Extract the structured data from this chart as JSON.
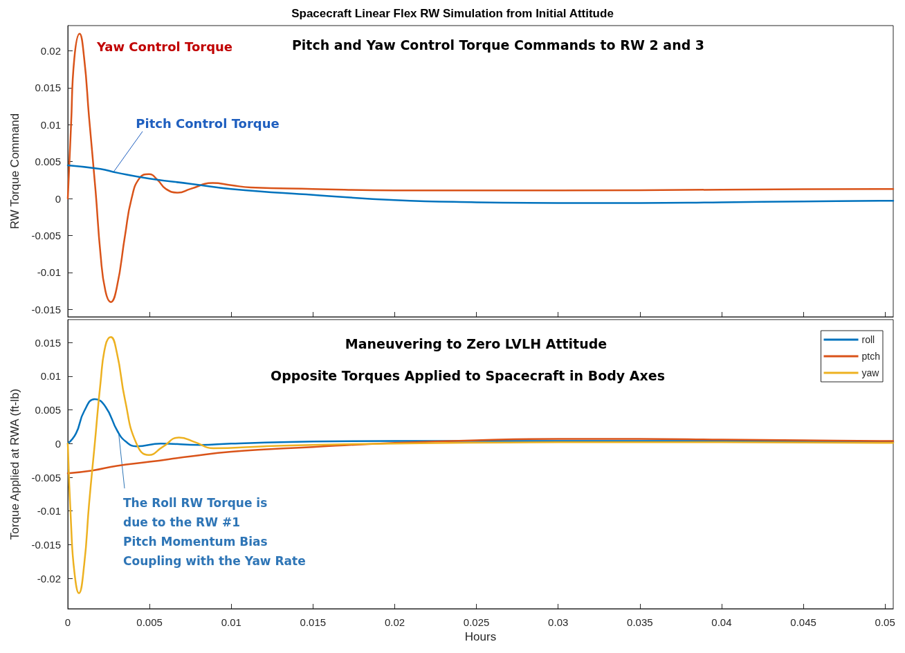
{
  "chart_data": [
    {
      "type": "line",
      "title": "Spacecraft Linear Flex RW Simulation from Initial Attitude",
      "ylabel": "RW Torque Command",
      "xlim": [
        0,
        0.0505
      ],
      "xticks": [
        0,
        0.005,
        0.01,
        0.015,
        0.02,
        0.025,
        0.03,
        0.035,
        0.04,
        0.045,
        0.05
      ],
      "ylim": [
        -0.016,
        0.0234
      ],
      "yticks": [
        -0.015,
        -0.01,
        -0.005,
        0,
        0.005,
        0.01,
        0.015,
        0.02
      ],
      "tick_labels": "y",
      "grid": false,
      "legend": false,
      "annotations": [
        "Pitch and Yaw Control Torque Commands to RW 2 and 3",
        "Yaw Control Torque",
        {
          "text": "Pitch Control Torque",
          "x": 0.0028,
          "y": 0.0036
        }
      ],
      "series": [
        {
          "color": "#d95319",
          "x": [
            0,
            0.0002,
            0.0004,
            0.00072,
            0.001,
            0.0013,
            0.0017,
            0.002,
            0.0023,
            0.00263,
            0.003,
            0.0035,
            0.0039,
            0.0044,
            0.00496,
            0.0055,
            0.006,
            0.00674,
            0.0075,
            0.00886,
            0.01,
            0.0112,
            0.015,
            0.02,
            0.03,
            0.04,
            0.05,
            0.0505
          ],
          "values": [
            0,
            0.01,
            0.019,
            0.0223,
            0.019,
            0.011,
            0.001,
            -0.0075,
            -0.0125,
            -0.014,
            -0.012,
            -0.005,
            0,
            0.0028,
            0.0033,
            0.0025,
            0.0013,
            0.0008,
            0.0013,
            0.0021,
            0.0018,
            0.0015,
            0.0013,
            0.0011,
            0.0011,
            0.0012,
            0.0013,
            0.0013
          ]
        },
        {
          "color": "#0072bd",
          "x": [
            0,
            0.002,
            0.003,
            0.005,
            0.0075,
            0.01,
            0.015,
            0.02,
            0.025,
            0.03,
            0.035,
            0.04,
            0.045,
            0.05,
            0.0505
          ],
          "values": [
            0.0045,
            0.004,
            0.0035,
            0.0027,
            0.002,
            0.0013,
            0.0005,
            -0.0002,
            -0.0005,
            -0.0006,
            -0.0006,
            -0.0005,
            -0.0004,
            -0.0003,
            -0.0003
          ]
        }
      ]
    },
    {
      "type": "line",
      "xlabel": "Hours",
      "ylabel": "Torque Applied at RWA (ft-lb)",
      "xlim": [
        0,
        0.0505
      ],
      "xticks": [
        0,
        0.005,
        0.01,
        0.015,
        0.02,
        0.025,
        0.03,
        0.035,
        0.04,
        0.045,
        0.05
      ],
      "ylim": [
        -0.0245,
        0.0184
      ],
      "yticks": [
        -0.02,
        -0.015,
        -0.01,
        -0.005,
        0,
        0.005,
        0.01,
        0.015
      ],
      "grid": false,
      "legend": "top right",
      "annotations": [
        "Maneuvering to Zero LVLH Attitude",
        "Opposite Torques Applied to Spacecraft in Body Axes",
        {
          "text": "The Roll RW Torque is\ndue to the RW #1\nPitch Momentum Bias\nCoupling with the Yaw Rate",
          "x": 0.0031,
          "y": 0.0018
        }
      ],
      "series": [
        {
          "name": "roll",
          "color": "#0072bd",
          "x": [
            0,
            0.0005,
            0.001,
            0.00165,
            0.0023,
            0.00305,
            0.0036,
            0.0042,
            0.0057,
            0.0081,
            0.01,
            0.015,
            0.02,
            0.03,
            0.04,
            0.05,
            0.0505
          ],
          "values": [
            0,
            0.0015,
            0.0048,
            0.0066,
            0.0055,
            0.0018,
            0.0002,
            -0.0004,
            0,
            -0.0002,
            0,
            0.0003,
            0.0004,
            0.0004,
            0.0004,
            0.0002,
            0.0002
          ]
        },
        {
          "name": "ptch",
          "color": "#d95319",
          "x": [
            0,
            0.0015,
            0.003,
            0.005,
            0.0075,
            0.01,
            0.015,
            0.02,
            0.025,
            0.03,
            0.035,
            0.04,
            0.045,
            0.05,
            0.0505
          ],
          "values": [
            -0.0044,
            -0.004,
            -0.0033,
            -0.0027,
            -0.0019,
            -0.0012,
            -0.0005,
            0.0001,
            0.0005,
            0.0007,
            0.0007,
            0.0006,
            0.0005,
            0.0004,
            0.0004
          ]
        },
        {
          "name": "yaw",
          "color": "#edb120",
          "x": [
            0,
            0.0002,
            0.0004,
            0.00068,
            0.001,
            0.0013,
            0.00165,
            0.002,
            0.0023,
            0.00263,
            0.003,
            0.0035,
            0.0042,
            0.00496,
            0.0058,
            0.0068,
            0.0078,
            0.0089,
            0.012,
            0.015,
            0.02,
            0.03,
            0.04,
            0.05,
            0.0505
          ],
          "values": [
            0,
            -0.012,
            -0.019,
            -0.0222,
            -0.018,
            -0.009,
            0,
            0.009,
            0.0145,
            0.0158,
            0.0135,
            0.0065,
            0,
            -0.0017,
            -0.0005,
            0.0009,
            0.0002,
            -0.0007,
            -0.0004,
            -0.0002,
            0,
            0.0002,
            0.0002,
            0.0001,
            0.0001
          ]
        }
      ]
    }
  ]
}
